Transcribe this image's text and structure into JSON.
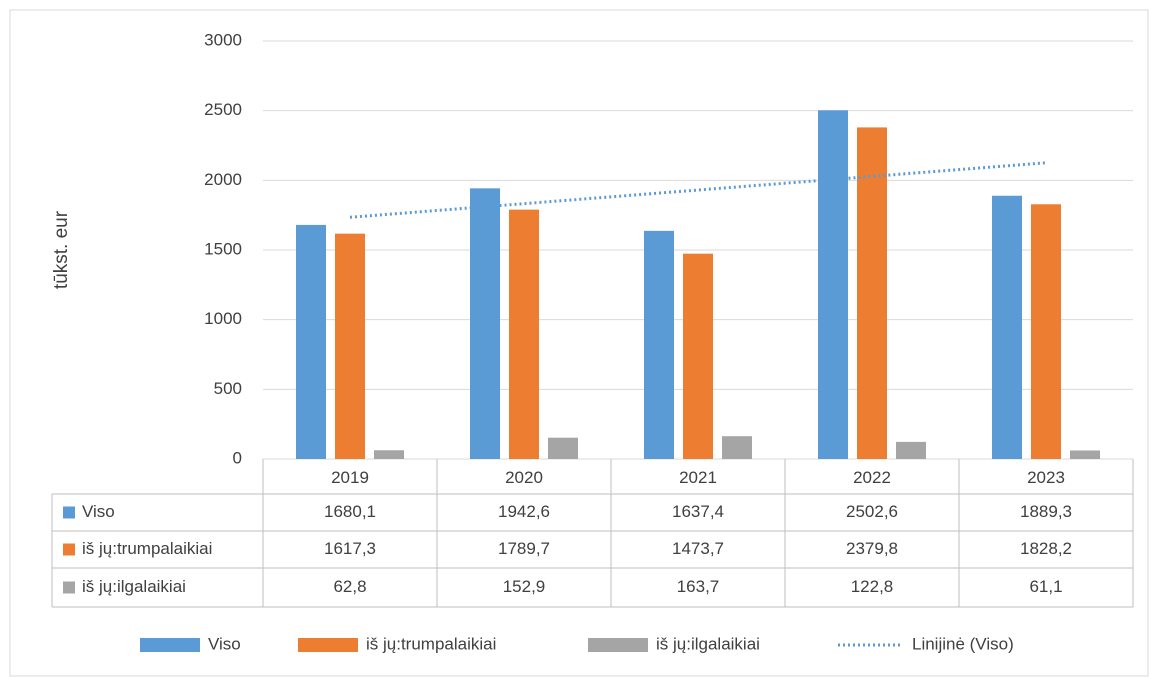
{
  "chart_data": {
    "type": "bar",
    "y_label": "tūkst. eur",
    "categories": [
      "2019",
      "2020",
      "2021",
      "2022",
      "2023"
    ],
    "series": [
      {
        "name": "Viso",
        "color": "#5b9bd5",
        "values": [
          1680.1,
          1942.6,
          1637.4,
          2502.6,
          1889.3
        ],
        "value_labels": [
          "1680,1",
          "1942,6",
          "1637,4",
          "2502,6",
          "1889,3"
        ]
      },
      {
        "name": "iš jų:trumpalaikiai",
        "color": "#ed7d31",
        "values": [
          1617.3,
          1789.7,
          1473.7,
          2379.8,
          1828.2
        ],
        "value_labels": [
          "1617,3",
          "1789,7",
          "1473,7",
          "2379,8",
          "1828,2"
        ]
      },
      {
        "name": "iš jų:ilgalaikiai",
        "color": "#a5a5a5",
        "values": [
          62.8,
          152.9,
          163.7,
          122.8,
          61.1
        ],
        "value_labels": [
          "62,8",
          "152,9",
          "163,7",
          "122,8",
          "61,1"
        ]
      }
    ],
    "trendline": {
      "name": "Linijinė (Viso)",
      "kind": "linear",
      "series": 0,
      "color": "#5b9bd5"
    },
    "ylim": [
      0,
      3000
    ],
    "yticks": [
      0,
      500,
      1000,
      1500,
      2000,
      2500,
      3000
    ],
    "grid": true,
    "legend": "bottom",
    "data_table": true
  }
}
